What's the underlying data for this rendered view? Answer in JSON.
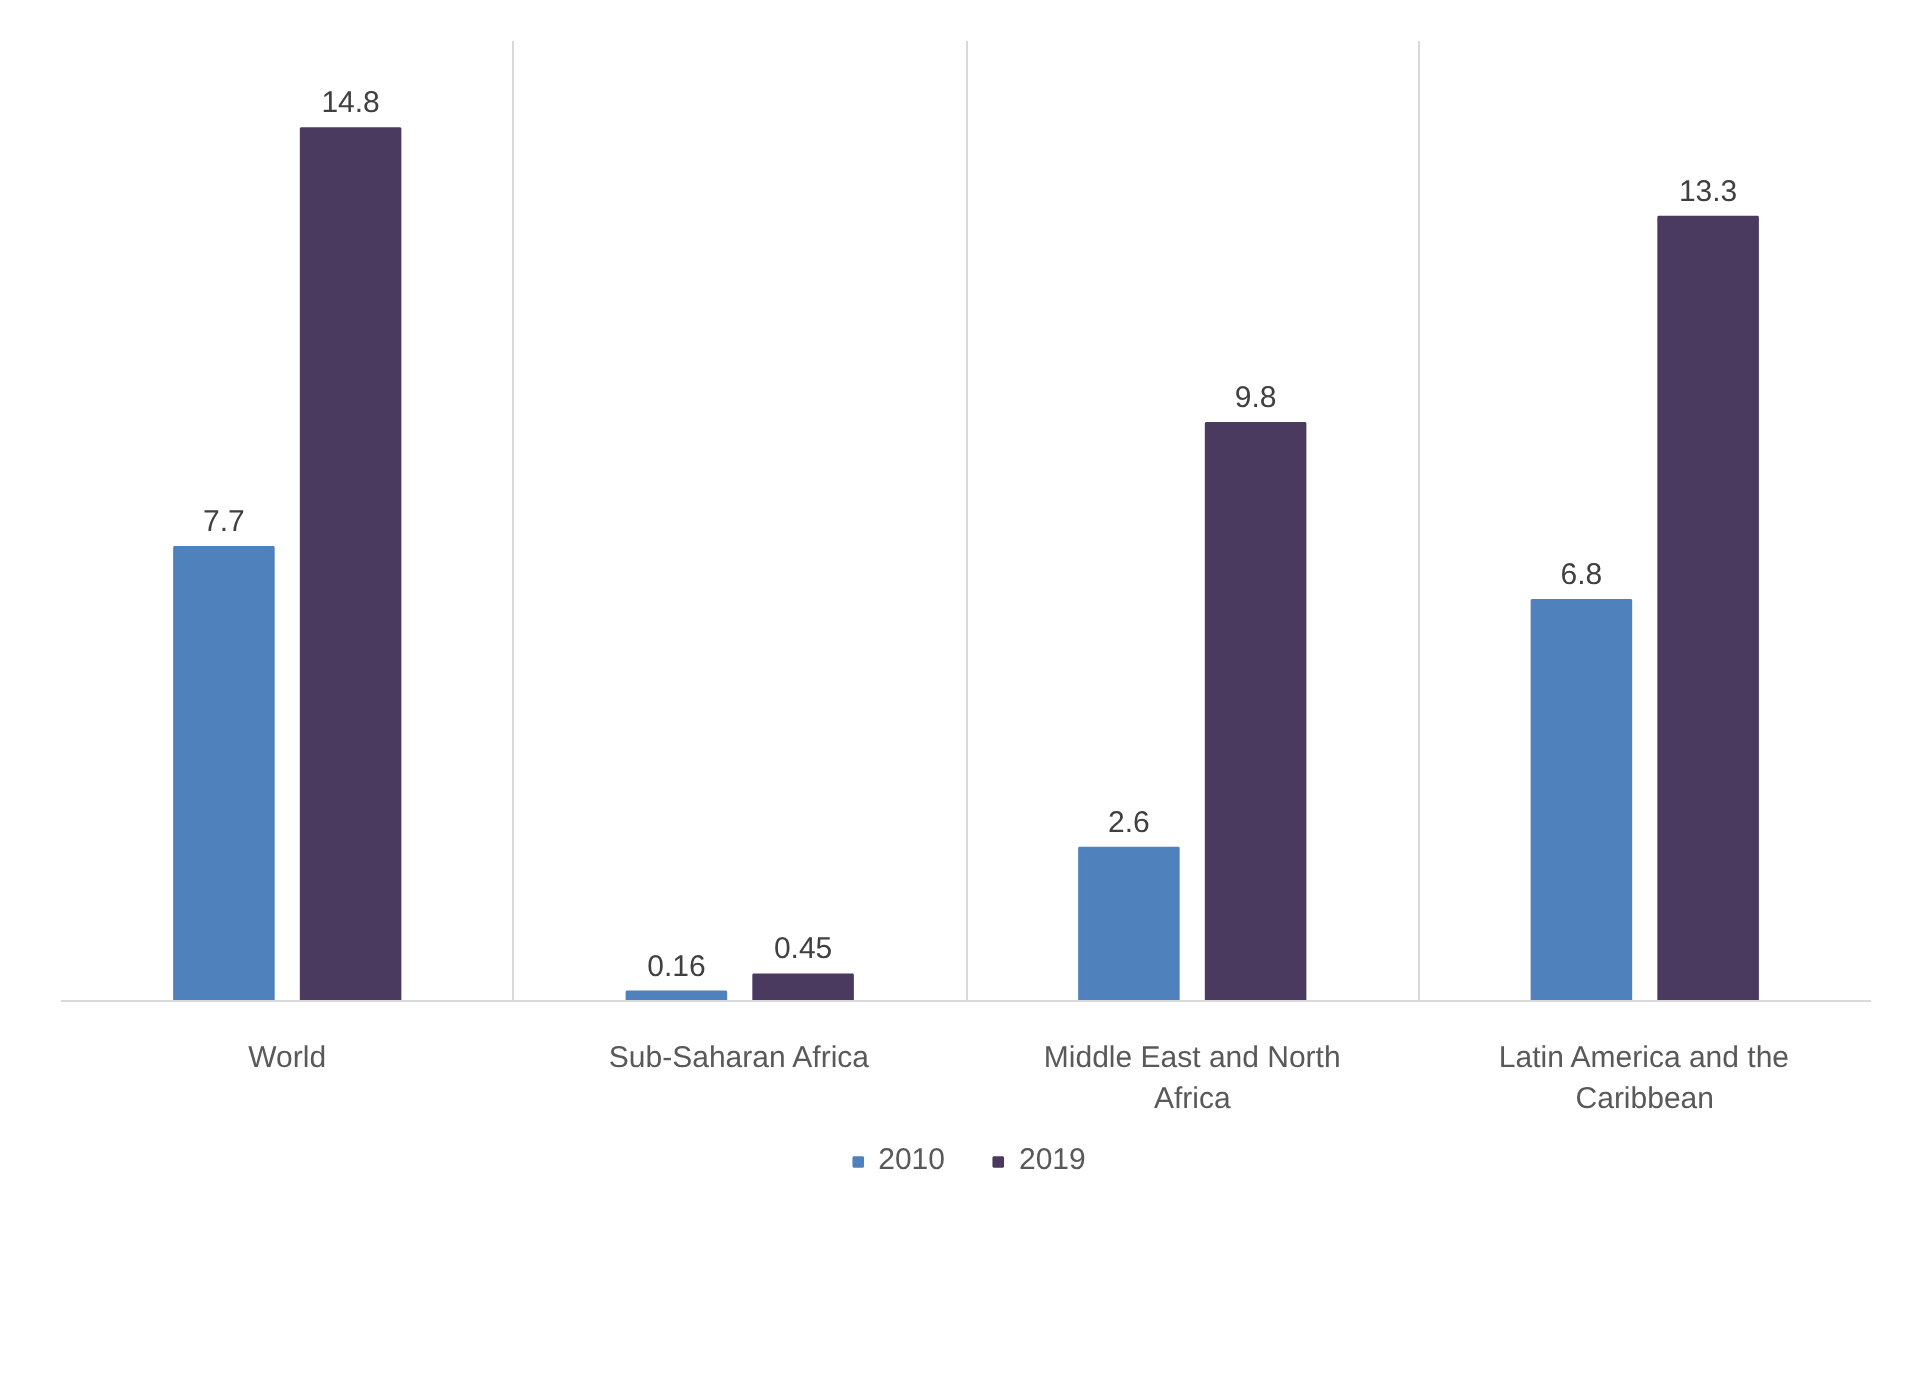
{
  "chart_data": {
    "type": "bar",
    "categories": [
      "World",
      "Sub-Saharan Africa",
      "Middle East and North Africa",
      "Latin America and the Caribbean"
    ],
    "series": [
      {
        "name": "2010",
        "color": "#4f81bd",
        "values": [
          7.7,
          0.16,
          2.6,
          6.8
        ]
      },
      {
        "name": "2019",
        "color": "#4b3a5f",
        "values": [
          14.8,
          0.45,
          9.8,
          13.3
        ]
      }
    ],
    "data_labels": true,
    "grid": "x",
    "legend": "bottom"
  }
}
